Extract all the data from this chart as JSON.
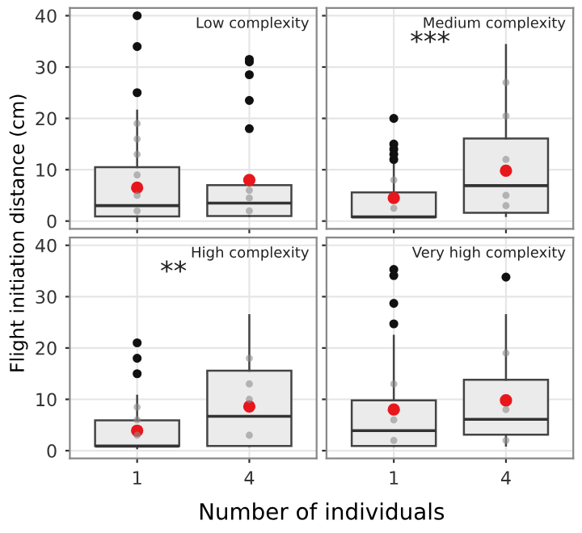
{
  "chart_data": [
    {
      "type": "box",
      "title": "Low complexity",
      "ylabel": "Flight initiation distance (cm)",
      "categories": [
        "1",
        "4"
      ],
      "ylim": [
        -1.5,
        41.5
      ],
      "yticks": [
        0,
        10,
        20,
        30,
        40
      ],
      "grid": true,
      "tick_labels": "y",
      "boxes": [
        {
          "low": 0,
          "q1": 0.9,
          "median": 3,
          "q3": 10.5,
          "high": 21.5,
          "mean": 6.5,
          "outliers": [
            25,
            34,
            40
          ]
        },
        {
          "low": 1,
          "q1": 1,
          "median": 3.5,
          "q3": 7,
          "high": 7,
          "mean": 8,
          "outliers": [
            18,
            23.5,
            28.5,
            31,
            31.5
          ]
        }
      ],
      "series": [
        {
          "type": "scatter",
          "color": "#8c8c8c",
          "x": [
            "1",
            "1",
            "1",
            "1",
            "1",
            "1",
            "4",
            "4",
            "4"
          ],
          "values": [
            2,
            5,
            9,
            13,
            16,
            19,
            2,
            4.5,
            6
          ]
        }
      ]
    },
    {
      "type": "box",
      "title": "Medium complexity",
      "annotations": [
        "***"
      ],
      "categories": [
        "1",
        "4"
      ],
      "ylim": [
        -1.5,
        41.5
      ],
      "yticks": [
        0,
        10,
        20,
        30,
        40
      ],
      "grid": true,
      "tick_labels": false,
      "boxes": [
        {
          "low": 0.8,
          "q1": 0.8,
          "median": 0.8,
          "q3": 5.6,
          "high": 11,
          "mean": 4.5,
          "outliers": [
            12,
            13,
            14,
            15,
            20
          ]
        },
        {
          "low": 1,
          "q1": 1.6,
          "median": 6.9,
          "q3": 16.1,
          "high": 34.3,
          "mean": 9.8
        }
      ],
      "series": [
        {
          "type": "scatter",
          "color": "#8c8c8c",
          "x": [
            "1",
            "1",
            "4",
            "4",
            "4",
            "4",
            "4"
          ],
          "values": [
            2.5,
            8,
            3,
            5,
            12,
            20.5,
            27
          ]
        }
      ]
    },
    {
      "type": "box",
      "title": "High complexity",
      "annotations": [
        "**"
      ],
      "xlabel": "Number of individuals",
      "categories": [
        "1",
        "4"
      ],
      "ylim": [
        -1.5,
        41.5
      ],
      "yticks": [
        0,
        10,
        20,
        30,
        40
      ],
      "grid": true,
      "boxes": [
        {
          "low": 0.5,
          "q1": 0.9,
          "median": 0.9,
          "q3": 5.9,
          "high": 10.7,
          "mean": 3.9,
          "outliers": [
            15,
            18,
            21
          ]
        },
        {
          "low": 0.9,
          "q1": 0.9,
          "median": 6.7,
          "q3": 15.6,
          "high": 26.4,
          "mean": 8.6
        }
      ],
      "series": [
        {
          "type": "scatter",
          "color": "#8c8c8c",
          "x": [
            "1",
            "1",
            "1",
            "4",
            "4",
            "4",
            "4"
          ],
          "values": [
            3,
            6,
            8.5,
            3,
            10,
            13,
            18
          ]
        }
      ]
    },
    {
      "type": "box",
      "title": "Very high complexity",
      "categories": [
        "1",
        "4"
      ],
      "ylim": [
        -1.5,
        41.5
      ],
      "yticks": [
        0,
        10,
        20,
        30,
        40
      ],
      "grid": true,
      "tick_labels": "x",
      "boxes": [
        {
          "low": 0.9,
          "q1": 0.9,
          "median": 3.9,
          "q3": 9.8,
          "high": 22.4,
          "mean": 8,
          "outliers": [
            24.7,
            28.7,
            34.1,
            35.3
          ]
        },
        {
          "low": 1,
          "q1": 3.1,
          "median": 6.1,
          "q3": 13.8,
          "high": 26.4,
          "mean": 9.8,
          "outliers": [
            33.8
          ]
        }
      ],
      "series": [
        {
          "type": "scatter",
          "color": "#8c8c8c",
          "x": [
            "1",
            "1",
            "1",
            "4",
            "4",
            "4"
          ],
          "values": [
            2,
            6,
            13,
            2,
            8,
            19
          ]
        }
      ]
    }
  ]
}
